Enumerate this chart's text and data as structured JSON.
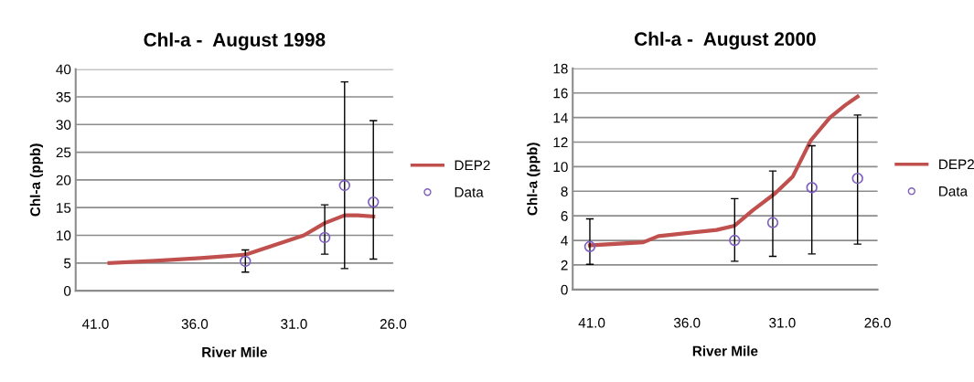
{
  "chart_data": [
    {
      "type": "line",
      "title": "Chl-a -  August 1998",
      "xlabel": "River Mile",
      "ylabel": "Chl-a (ppb)",
      "xlim": [
        42,
        26
      ],
      "xticks": [
        {
          "value": 41,
          "label": "41.0"
        },
        {
          "value": 36,
          "label": "36.0"
        },
        {
          "value": 31,
          "label": "31.0"
        },
        {
          "value": 26,
          "label": "26.0"
        }
      ],
      "ylim": [
        0,
        40
      ],
      "yticks": [
        0,
        5,
        10,
        15,
        20,
        25,
        30,
        35,
        40
      ],
      "grid": "y",
      "legend": "right",
      "series": [
        {
          "name": "DEP2",
          "color": "#c0504d",
          "marker": "none",
          "line_style": "solid",
          "x": [
            40.3,
            38.0,
            35.7,
            33.45,
            30.5,
            29.45,
            28.45,
            27.8,
            27.0
          ],
          "values": [
            5.0,
            5.4,
            5.9,
            6.5,
            10.0,
            12.2,
            13.6,
            13.6,
            13.4
          ]
        },
        {
          "name": "Data",
          "type": "scatter",
          "color": "#7f5fbf",
          "marker": "circle",
          "x": [
            33.45,
            29.45,
            28.45,
            27.0
          ],
          "values": [
            5.3,
            9.6,
            19.0,
            16.0
          ],
          "errors": [
            [
              3.35,
              7.35
            ],
            [
              6.6,
              15.5
            ],
            [
              4.0,
              37.7
            ],
            [
              5.7,
              30.7
            ]
          ]
        }
      ]
    },
    {
      "type": "line",
      "title": "Chl-a -  August 2000",
      "xlabel": "River Mile",
      "ylabel": "Chl-a (ppb)",
      "xlim": [
        42,
        26
      ],
      "xticks": [
        {
          "value": 41,
          "label": "41.0"
        },
        {
          "value": 36,
          "label": "36.0"
        },
        {
          "value": 31,
          "label": "31.0"
        },
        {
          "value": 26,
          "label": "26.0"
        }
      ],
      "ylim": [
        0,
        18
      ],
      "yticks": [
        0,
        2,
        4,
        6,
        8,
        10,
        12,
        14,
        16,
        18
      ],
      "grid": "y",
      "legend": "right",
      "series": [
        {
          "name": "DEP2",
          "color": "#c0504d",
          "marker": "none",
          "line_style": "solid",
          "x": [
            41.1,
            38.3,
            37.5,
            34.45,
            33.5,
            32.55,
            31.4,
            30.45,
            29.5,
            28.5,
            27.7,
            27.05
          ],
          "values": [
            3.6,
            3.85,
            4.35,
            4.85,
            5.2,
            6.45,
            7.8,
            9.2,
            12.15,
            14.0,
            15.0,
            15.7
          ]
        },
        {
          "name": "Data",
          "type": "scatter",
          "color": "#7f5fbf",
          "marker": "circle",
          "x": [
            41.1,
            33.5,
            31.5,
            29.45,
            27.05
          ],
          "values": [
            3.5,
            4.0,
            5.45,
            8.3,
            9.05
          ],
          "errors": [
            [
              2.05,
              5.75
            ],
            [
              2.3,
              7.4
            ],
            [
              2.7,
              9.65
            ],
            [
              2.9,
              11.7
            ],
            [
              3.7,
              14.2
            ]
          ]
        }
      ]
    }
  ]
}
